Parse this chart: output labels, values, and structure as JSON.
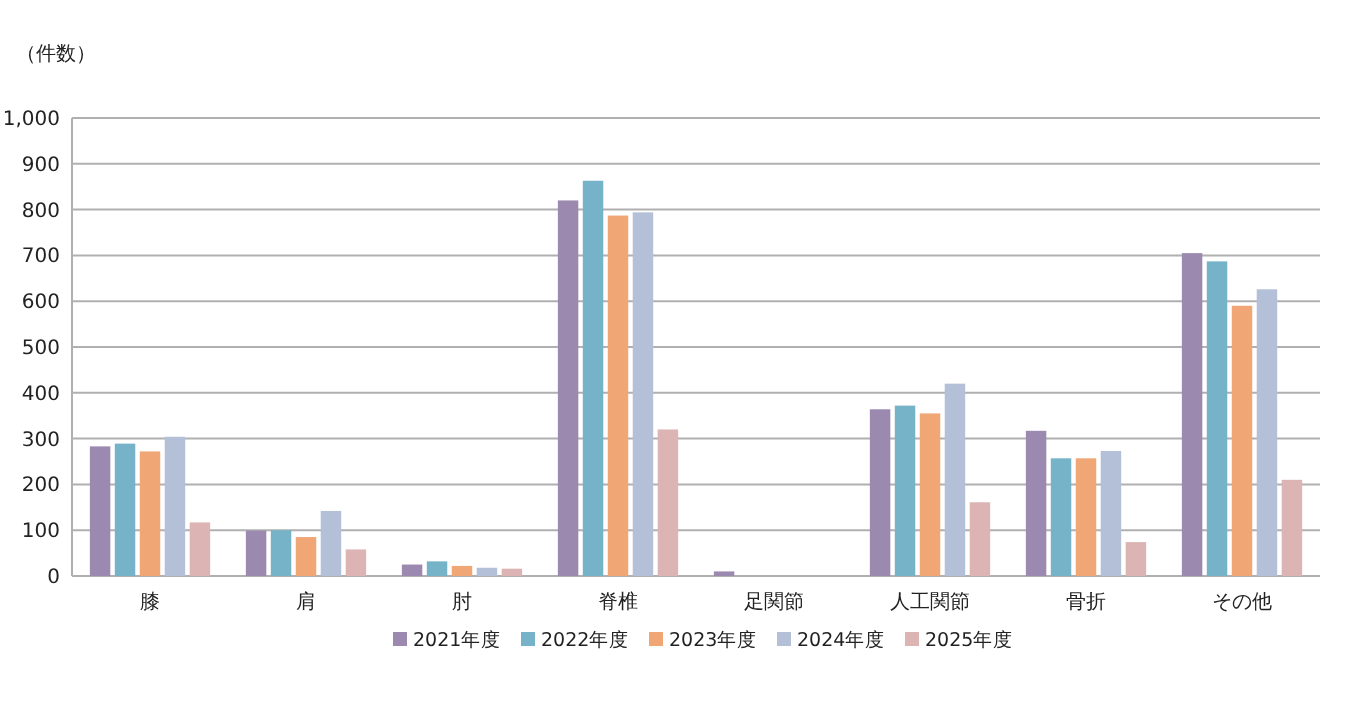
{
  "chart_data": {
    "type": "bar",
    "ylabel": "（件数）",
    "categories": [
      "膝",
      "肩",
      "肘",
      "脊椎",
      "足関節",
      "人工関節",
      "骨折",
      "その他"
    ],
    "series": [
      {
        "name": "2021年度",
        "color": "#9b89b0",
        "values": [
          283,
          99,
          25,
          820,
          10,
          364,
          317,
          705
        ]
      },
      {
        "name": "2022年度",
        "color": "#77b3c8",
        "values": [
          289,
          100,
          32,
          863,
          null,
          372,
          257,
          687
        ]
      },
      {
        "name": "2023年度",
        "color": "#f0a675",
        "values": [
          272,
          85,
          22,
          787,
          0,
          355,
          257,
          590
        ]
      },
      {
        "name": "2024年度",
        "color": "#b4c0d8",
        "values": [
          304,
          142,
          18,
          794,
          null,
          420,
          273,
          626
        ]
      },
      {
        "name": "2025年度",
        "color": "#dcb4b4",
        "values": [
          117,
          58,
          16,
          320,
          0,
          161,
          74,
          210
        ]
      }
    ],
    "ylim": [
      0,
      1000
    ],
    "yticks": [
      0,
      100,
      200,
      300,
      400,
      500,
      600,
      700,
      800,
      900,
      {
        "value": 1000,
        "label": "1,000"
      }
    ],
    "grid": "y",
    "legend": "bottom"
  }
}
